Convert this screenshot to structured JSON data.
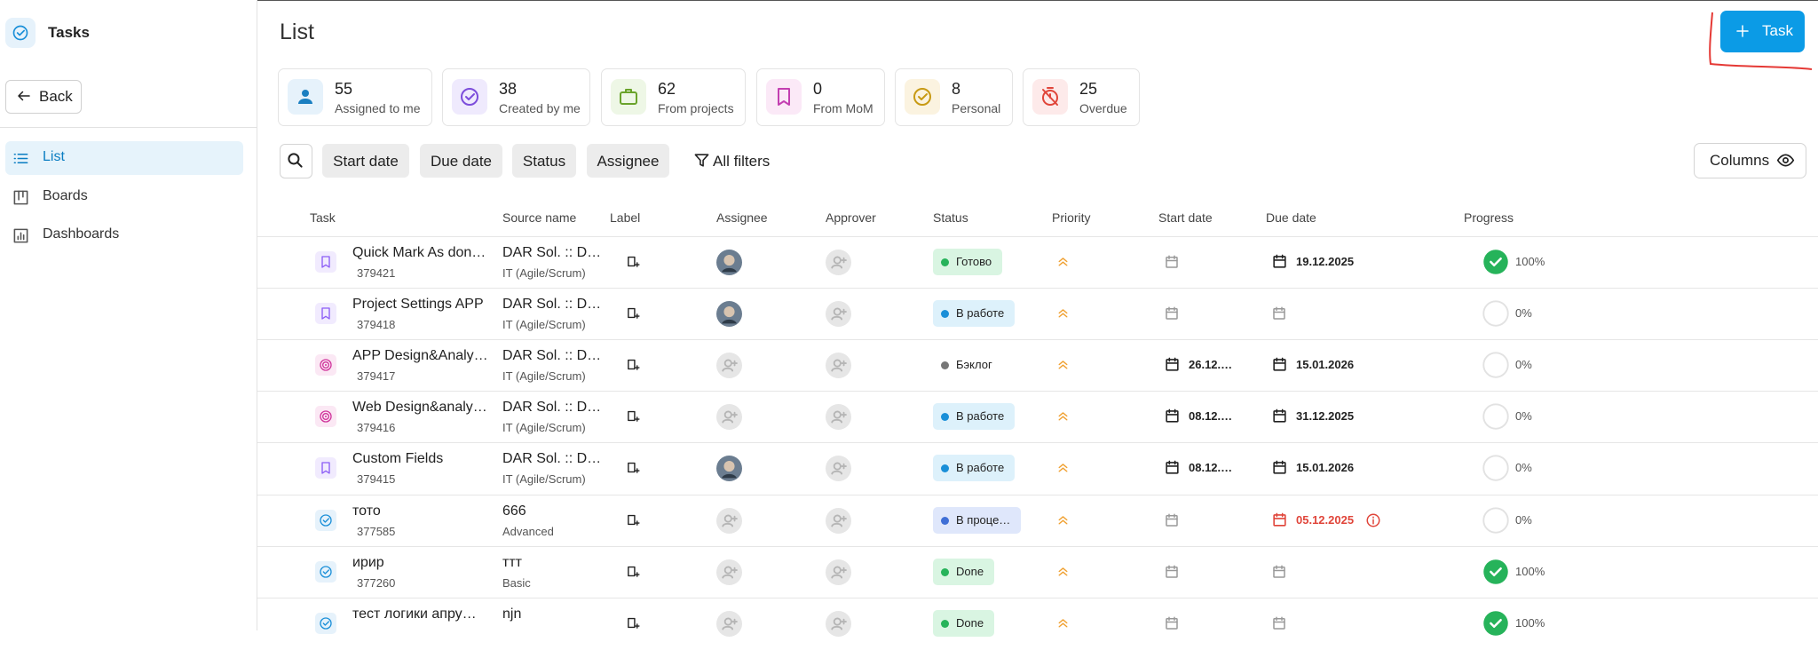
{
  "sidebar": {
    "app_title": "Tasks",
    "back": "Back",
    "nav": [
      "List",
      "Boards",
      "Dashboards"
    ],
    "active": 0
  },
  "header": {
    "title": "List",
    "new_task_button": "Task"
  },
  "stats": [
    {
      "value": 55,
      "label": "Assigned to me",
      "icon": "person",
      "color": "#1a7fc1",
      "bg": "#e6f2fb"
    },
    {
      "value": 38,
      "label": "Created by me",
      "icon": "check",
      "color": "#7c4ddb",
      "bg": "#efeafd"
    },
    {
      "value": 62,
      "label": "From projects",
      "icon": "bag",
      "color": "#6aa32b",
      "bg": "#eef7e6"
    },
    {
      "value": 0,
      "label": "From MoM",
      "icon": "bookmark",
      "color": "#c33fb1",
      "bg": "#fbe9f7"
    },
    {
      "value": 8,
      "label": "Personal",
      "icon": "check",
      "color": "#c89a14",
      "bg": "#fbf3e0"
    },
    {
      "value": 25,
      "label": "Overdue",
      "icon": "timer",
      "color": "#e0453a",
      "bg": "#fdeaea"
    }
  ],
  "filters": [
    "Start date",
    "Due date",
    "Status",
    "Assignee"
  ],
  "all_filters": "All filters",
  "columns_button": "Columns",
  "table": {
    "columns": [
      "Task",
      "Source name",
      "Label",
      "Assignee",
      "Approver",
      "Status",
      "Priority",
      "Start date",
      "Due date",
      "Progress"
    ],
    "rows": [
      {
        "icon": "bookmark",
        "title": "Quick Mark As don…",
        "id": "379421",
        "source": "DAR Sol. :: D…",
        "source_sub": "IT (Agile/Scrum)",
        "has_assignee": true,
        "status": "Готово",
        "status_tone": "green",
        "start_date": null,
        "due_date": "19.12.2025",
        "overdue": false,
        "progress": "100%",
        "completed": true
      },
      {
        "icon": "bookmark",
        "title": "Project Settings APP",
        "id": "379418",
        "source": "DAR Sol. :: D…",
        "source_sub": "IT (Agile/Scrum)",
        "has_assignee": true,
        "status": "В работе",
        "status_tone": "blue",
        "start_date": null,
        "due_date": null,
        "overdue": false,
        "progress": "0%",
        "completed": false
      },
      {
        "icon": "target",
        "title": "APP Design&Analy…",
        "id": "379417",
        "source": "DAR Sol. :: D…",
        "source_sub": "IT (Agile/Scrum)",
        "has_assignee": false,
        "status": "Бэклог",
        "status_tone": "grey",
        "start_date": "26.12.…",
        "due_date": "15.01.2026",
        "overdue": false,
        "progress": "0%",
        "completed": false
      },
      {
        "icon": "target",
        "title": "Web Design&analy…",
        "id": "379416",
        "source": "DAR Sol. :: D…",
        "source_sub": "IT (Agile/Scrum)",
        "has_assignee": false,
        "status": "В работе",
        "status_tone": "blue",
        "start_date": "08.12.…",
        "due_date": "31.12.2025",
        "overdue": false,
        "progress": "0%",
        "completed": false
      },
      {
        "icon": "bookmark",
        "title": "Custom Fields",
        "id": "379415",
        "source": "DAR Sol. :: D…",
        "source_sub": "IT (Agile/Scrum)",
        "has_assignee": true,
        "status": "В работе",
        "status_tone": "blue",
        "start_date": "08.12.…",
        "due_date": "15.01.2026",
        "overdue": false,
        "progress": "0%",
        "completed": false
      },
      {
        "icon": "task",
        "title": "тото",
        "id": "377585",
        "source": "666",
        "source_sub": "Advanced",
        "has_assignee": false,
        "status": "В проце…",
        "status_tone": "indigo",
        "start_date": null,
        "due_date": "05.12.2025",
        "overdue": true,
        "progress": "0%",
        "completed": false
      },
      {
        "icon": "task",
        "title": "ирир",
        "id": "377260",
        "source": "ттт",
        "source_sub": "Basic",
        "has_assignee": false,
        "status": "Done",
        "status_tone": "green",
        "start_date": null,
        "due_date": null,
        "overdue": false,
        "progress": "100%",
        "completed": true
      },
      {
        "icon": "task",
        "title": "тест логики апру…",
        "id": null,
        "source": "njn",
        "source_sub": null,
        "has_assignee": false,
        "status": "Done",
        "status_tone": "green",
        "start_date": null,
        "due_date": null,
        "overdue": false,
        "progress": "100%",
        "completed": true
      }
    ]
  }
}
